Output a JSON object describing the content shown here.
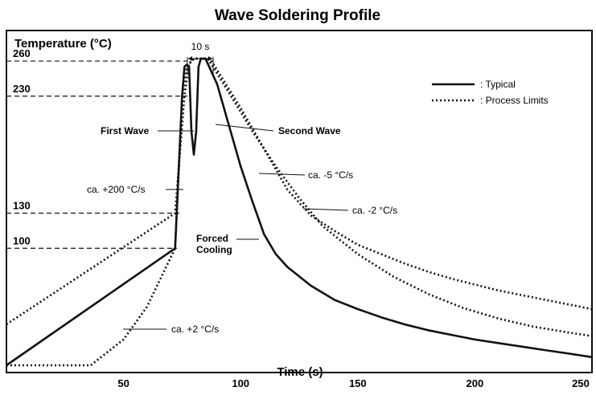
{
  "chart_data": {
    "type": "line",
    "title": "Wave Soldering Profile",
    "xlabel": "Time (s)",
    "ylabel": "Temperature (°C)",
    "xlim": [
      0,
      250
    ],
    "ylim": [
      0,
      290
    ],
    "x_ticks": [
      50,
      100,
      150,
      200,
      250
    ],
    "y_ticks": [
      100,
      130,
      230,
      260
    ],
    "grid": false,
    "legend_position": "top-right",
    "series": [
      {
        "name": ": Typical",
        "style": "solid",
        "points": [
          [
            0,
            0
          ],
          [
            72,
            100
          ],
          [
            75,
            230
          ],
          [
            76,
            255
          ],
          [
            77,
            257
          ],
          [
            78,
            255
          ],
          [
            79,
            200
          ],
          [
            80,
            180
          ],
          [
            81,
            200
          ],
          [
            82,
            255
          ],
          [
            83,
            262
          ],
          [
            85,
            262
          ],
          [
            90,
            240
          ],
          [
            95,
            205
          ],
          [
            100,
            170
          ],
          [
            105,
            140
          ],
          [
            110,
            112
          ],
          [
            115,
            95
          ],
          [
            120,
            84
          ],
          [
            130,
            68
          ],
          [
            140,
            56
          ],
          [
            150,
            48
          ],
          [
            160,
            41
          ],
          [
            170,
            35
          ],
          [
            180,
            30
          ],
          [
            190,
            26
          ],
          [
            200,
            22
          ],
          [
            210,
            19
          ],
          [
            220,
            16
          ],
          [
            230,
            13
          ],
          [
            240,
            10
          ],
          [
            250,
            7
          ]
        ]
      },
      {
        "name": ": Process Limits",
        "style": "dotted",
        "points": [
          [
            0,
            35
          ],
          [
            72,
            130
          ],
          [
            76,
            230
          ],
          [
            78,
            258
          ],
          [
            80,
            262
          ],
          [
            84,
            262
          ],
          [
            87,
            262
          ],
          [
            100,
            220
          ],
          [
            110,
            185
          ],
          [
            120,
            150
          ],
          [
            130,
            128
          ],
          [
            140,
            115
          ],
          [
            150,
            103
          ],
          [
            160,
            95
          ],
          [
            170,
            87
          ],
          [
            180,
            80
          ],
          [
            190,
            74
          ],
          [
            200,
            69
          ],
          [
            210,
            64
          ],
          [
            220,
            60
          ],
          [
            230,
            56
          ],
          [
            240,
            52
          ],
          [
            250,
            48
          ]
        ]
      },
      {
        "name": "",
        "style": "dotted",
        "points": [
          [
            0,
            0
          ],
          [
            36,
            0
          ],
          [
            50,
            22
          ],
          [
            60,
            50
          ],
          [
            72,
            100
          ],
          [
            75,
            230
          ],
          [
            77,
            255
          ],
          [
            80,
            262
          ],
          [
            84,
            262
          ],
          [
            86,
            262
          ],
          [
            95,
            233
          ],
          [
            105,
            200
          ],
          [
            115,
            170
          ],
          [
            125,
            143
          ],
          [
            135,
            119
          ],
          [
            150,
            95
          ],
          [
            165,
            76
          ],
          [
            180,
            61
          ],
          [
            195,
            49
          ],
          [
            210,
            40
          ],
          [
            225,
            33
          ],
          [
            240,
            28
          ],
          [
            250,
            25
          ]
        ]
      }
    ],
    "reference_lines": [
      {
        "y": 260,
        "label": "260"
      },
      {
        "y": 230,
        "label": "230"
      },
      {
        "y": 130,
        "label": "130"
      },
      {
        "y": 100,
        "label": "100"
      }
    ],
    "annotations": {
      "ten_s": "10 s",
      "first_wave": "First Wave",
      "second_wave": "Second Wave",
      "rate_200": "ca. +200 °C/s",
      "rate_minus5": "ca. -5 °C/s",
      "rate_minus2": "ca. -2 °C/s",
      "forced_cooling_1": "Forced",
      "forced_cooling_2": "Cooling",
      "rate_2": "ca. +2 °C/s"
    },
    "colors": {
      "line": "#111111",
      "background": "#ffffff"
    }
  }
}
